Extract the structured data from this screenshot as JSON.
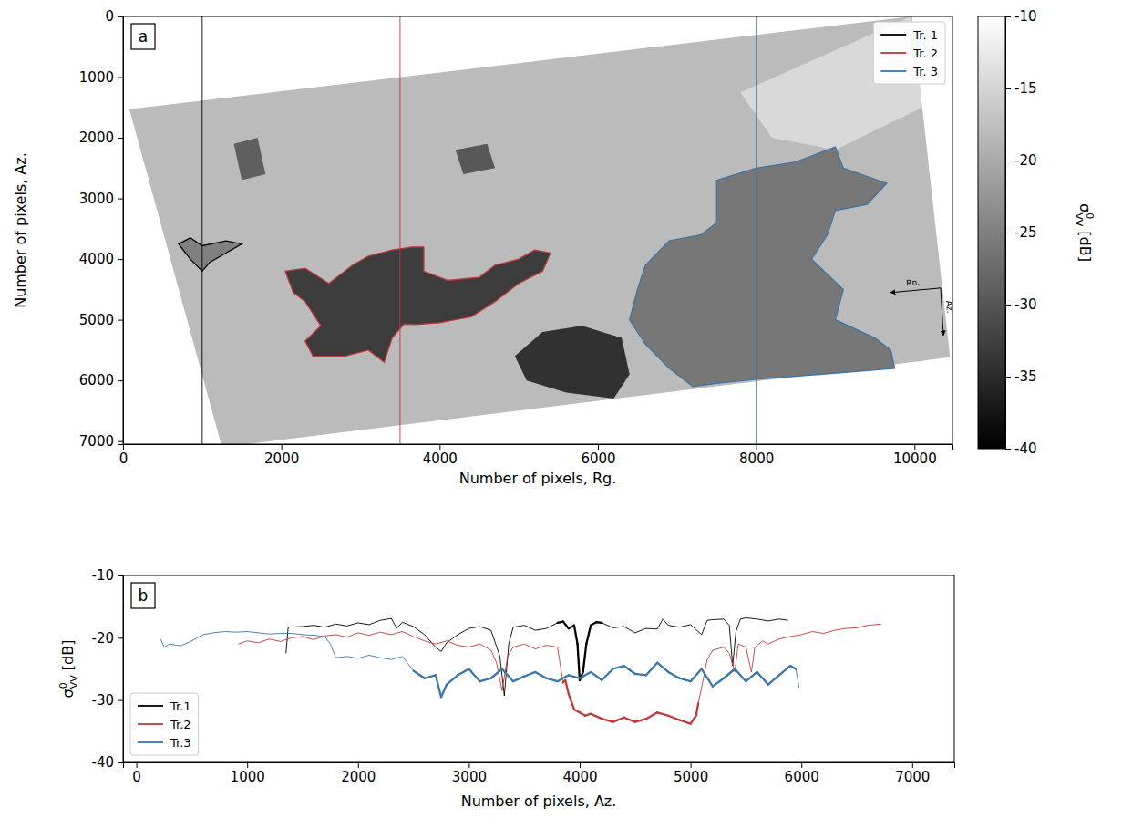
{
  "chart_data": [
    {
      "type": "image",
      "panel": "a",
      "xlabel": "Number of pixels, Rg.",
      "ylabel": "Number of pixels, Az.",
      "xlim": [
        0,
        10480
      ],
      "ylim": [
        7050,
        0
      ],
      "xticks": [
        0,
        2000,
        4000,
        6000,
        8000,
        10000
      ],
      "yticks": [
        0,
        1000,
        2000,
        3000,
        4000,
        5000,
        6000,
        7000
      ],
      "legend": "upper right",
      "annotations": [
        "Rn.",
        "Az."
      ],
      "colorbar": {
        "range": [
          -40,
          -10
        ],
        "ticks": [
          -40,
          -35,
          -30,
          -25,
          -20,
          -15,
          -10
        ],
        "label": {
          "symbol": "σ",
          "superscript": "0",
          "subscript": "VV",
          "unit": "[dB]"
        }
      },
      "image": {
        "x": [
          80,
          9970,
          10450,
          1250
        ],
        "y": [
          1530,
          0,
          5620,
          7100
        ],
        "value": -18
      },
      "regions": [
        {
          "x": [
            7800,
            9960,
            10100,
            9000,
            8200
          ],
          "y": [
            1250,
            0,
            1500,
            2200,
            2000
          ],
          "value": -14
        },
        {
          "x": [
            1400,
            1700,
            1800,
            1500
          ],
          "y": [
            2100,
            2000,
            2600,
            2700
          ],
          "value": -30
        },
        {
          "x": [
            4950,
            5300,
            5800,
            6300,
            6400,
            6200,
            5600,
            5100
          ],
          "y": [
            5600,
            5200,
            5100,
            5300,
            5900,
            6300,
            6200,
            6000
          ],
          "value": -36
        },
        {
          "x": [
            4200,
            4600,
            4700,
            4300
          ],
          "y": [
            2200,
            2100,
            2500,
            2600
          ],
          "value": -31
        }
      ],
      "series": [
        {
          "name": "Tr. 1",
          "color": "#000000",
          "x": 1000,
          "outline_value": -25,
          "outline_x": [
            700,
            850,
            1000,
            1300,
            1500,
            1300,
            1100,
            1000,
            850
          ],
          "outline_y": [
            3750,
            3650,
            3780,
            3700,
            3750,
            3900,
            4050,
            4200,
            4000
          ]
        },
        {
          "name": "Tr. 2",
          "color": "#c0393b",
          "x": 3500,
          "outline_value": -33,
          "outline_x": [
            2050,
            2300,
            2600,
            2900,
            3100,
            3400,
            3650,
            3800,
            3800,
            4100,
            4500,
            4700,
            5000,
            5200,
            5400,
            5300,
            5000,
            4700,
            4400,
            4000,
            3700,
            3550,
            3400,
            3300,
            3100,
            2800,
            2400,
            2300,
            2500,
            2300,
            2150
          ],
          "outline_y": [
            4200,
            4150,
            4400,
            4100,
            3950,
            3850,
            3800,
            3800,
            4200,
            4350,
            4300,
            4100,
            4000,
            3850,
            3900,
            4200,
            4400,
            4700,
            4950,
            5050,
            5080,
            5070,
            5300,
            5700,
            5500,
            5600,
            5600,
            5350,
            5100,
            4700,
            4550
          ]
        },
        {
          "name": "Tr. 3",
          "color": "#3a76a8",
          "x": 8000,
          "outline_value": -26,
          "outline_x": [
            6400,
            6500,
            6600,
            6900,
            7300,
            7500,
            7500,
            8000,
            8500,
            9000,
            9100,
            9650,
            9400,
            9000,
            8900,
            8700,
            9100,
            9000,
            9500,
            9700,
            9750,
            9300,
            8800,
            8000,
            7500,
            7200,
            6900,
            6600
          ],
          "outline_y": [
            5000,
            4500,
            4100,
            3700,
            3600,
            3400,
            2700,
            2500,
            2400,
            2150,
            2500,
            2750,
            3100,
            3200,
            3600,
            4000,
            4500,
            5000,
            5300,
            5500,
            5800,
            5850,
            5900,
            5980,
            6050,
            6100,
            5800,
            5400
          ]
        }
      ]
    },
    {
      "type": "line",
      "panel": "b",
      "xlabel": "Number of pixels, Az.",
      "ylabel": {
        "symbol": "σ",
        "superscript": "0",
        "subscript": "VV",
        "unit": "[dB]"
      },
      "xlim": [
        -120,
        7380
      ],
      "ylim": [
        -40,
        -10
      ],
      "xticks": [
        0,
        1000,
        2000,
        3000,
        4000,
        5000,
        6000,
        7000
      ],
      "yticks": [
        -40,
        -30,
        -20,
        -10
      ],
      "legend": "lower left",
      "series": [
        {
          "name": "Tr.1",
          "color": "#000000",
          "inside_x": [
            3800,
            4200
          ],
          "x": [
            1350,
            1370,
            1500,
            1600,
            1700,
            1800,
            1900,
            2000,
            2100,
            2200,
            2300,
            2350,
            2400,
            2500,
            2600,
            2700,
            2750,
            2800,
            2900,
            3000,
            3100,
            3200,
            3280,
            3320,
            3360,
            3400,
            3500,
            3600,
            3700,
            3800,
            3850,
            3900,
            3950,
            3980,
            4000,
            4030,
            4060,
            4100,
            4150,
            4200,
            4300,
            4400,
            4500,
            4600,
            4700,
            4750,
            4800,
            4900,
            5000,
            5100,
            5150,
            5200,
            5300,
            5350,
            5380,
            5410,
            5450,
            5500,
            5600,
            5700,
            5800,
            5880
          ],
          "values": [
            -22.5,
            -18.3,
            -18.2,
            -18.0,
            -18.3,
            -17.8,
            -18.1,
            -17.6,
            -17.9,
            -17.2,
            -16.9,
            -18.5,
            -17.5,
            -18.2,
            -19.5,
            -21.5,
            -22.2,
            -20.8,
            -19.5,
            -18.5,
            -18.2,
            -18.8,
            -23.0,
            -29.3,
            -21.0,
            -18.3,
            -18.0,
            -18.8,
            -18.5,
            -17.6,
            -17.4,
            -18.5,
            -18.0,
            -21.0,
            -26.8,
            -25.5,
            -21.0,
            -18.0,
            -17.5,
            -17.6,
            -18.4,
            -18.2,
            -19.2,
            -18.5,
            -18.6,
            -17.0,
            -18.0,
            -18.3,
            -17.9,
            -19.5,
            -17.2,
            -17.1,
            -17.0,
            -18.0,
            -24.5,
            -19.0,
            -17.0,
            -16.8,
            -17.0,
            -17.3,
            -17.0,
            -17.2
          ]
        },
        {
          "name": "Tr.2",
          "color": "#c0393b",
          "inside_x": [
            3850,
            5070
          ],
          "x": [
            920,
            1000,
            1100,
            1200,
            1300,
            1400,
            1500,
            1600,
            1700,
            1800,
            1900,
            2000,
            2100,
            2200,
            2300,
            2400,
            2500,
            2600,
            2700,
            2800,
            2900,
            3000,
            3100,
            3200,
            3250,
            3300,
            3350,
            3400,
            3500,
            3600,
            3700,
            3800,
            3850,
            3870,
            3900,
            3950,
            4000,
            4050,
            4100,
            4200,
            4300,
            4400,
            4500,
            4600,
            4700,
            4800,
            4900,
            5000,
            5050,
            5070,
            5100,
            5150,
            5200,
            5300,
            5350,
            5400,
            5430,
            5500,
            5550,
            5580,
            5650,
            5700,
            5800,
            5900,
            6000,
            6100,
            6200,
            6300,
            6400,
            6500,
            6600,
            6720
          ],
          "values": [
            -21.0,
            -20.5,
            -20.8,
            -20.2,
            -20.6,
            -20.0,
            -19.8,
            -20.3,
            -19.7,
            -19.5,
            -19.9,
            -19.2,
            -19.6,
            -19.1,
            -19.5,
            -19.0,
            -19.8,
            -20.5,
            -21.0,
            -20.5,
            -21.2,
            -21.5,
            -21.0,
            -22.0,
            -24.0,
            -28.5,
            -23.0,
            -21.5,
            -21.0,
            -21.8,
            -21.2,
            -21.5,
            -27.2,
            -26.8,
            -29.0,
            -31.5,
            -32.0,
            -32.5,
            -32.2,
            -33.0,
            -33.5,
            -32.8,
            -33.5,
            -33.0,
            -32.0,
            -32.5,
            -33.2,
            -33.8,
            -32.5,
            -30.5,
            -28.0,
            -23.5,
            -22.0,
            -21.5,
            -22.5,
            -25.5,
            -21.0,
            -21.5,
            -25.5,
            -21.5,
            -20.5,
            -21.0,
            -20.2,
            -19.8,
            -19.5,
            -19.0,
            -19.3,
            -18.8,
            -18.5,
            -18.4,
            -18.0,
            -17.8
          ]
        },
        {
          "name": "Tr.3",
          "color": "#3a76a8",
          "inside_x": [
            2500,
            5950
          ],
          "x": [
            220,
            250,
            300,
            400,
            500,
            600,
            700,
            800,
            900,
            1000,
            1100,
            1200,
            1300,
            1400,
            1500,
            1600,
            1700,
            1750,
            1800,
            1900,
            2000,
            2100,
            2200,
            2300,
            2400,
            2500,
            2600,
            2700,
            2750,
            2800,
            2900,
            3000,
            3100,
            3200,
            3300,
            3400,
            3500,
            3600,
            3700,
            3800,
            3900,
            4000,
            4100,
            4200,
            4300,
            4400,
            4500,
            4600,
            4700,
            4800,
            4900,
            5000,
            5100,
            5200,
            5300,
            5400,
            5500,
            5600,
            5700,
            5800,
            5900,
            5950,
            5980
          ],
          "values": [
            -20.2,
            -21.5,
            -21.0,
            -21.3,
            -20.5,
            -19.5,
            -19.2,
            -19.0,
            -19.1,
            -19.0,
            -19.2,
            -19.4,
            -19.3,
            -19.3,
            -19.5,
            -19.6,
            -19.8,
            -21.0,
            -23.2,
            -23.0,
            -23.3,
            -22.8,
            -23.2,
            -23.5,
            -23.0,
            -25.3,
            -26.5,
            -26.0,
            -29.5,
            -27.5,
            -26.0,
            -25.0,
            -27.0,
            -26.5,
            -25.0,
            -27.0,
            -26.2,
            -25.5,
            -26.5,
            -27.0,
            -26.0,
            -26.5,
            -25.5,
            -26.8,
            -25.0,
            -24.5,
            -25.8,
            -26.0,
            -24.0,
            -25.5,
            -26.5,
            -27.0,
            -25.0,
            -27.8,
            -26.5,
            -25.0,
            -27.0,
            -25.5,
            -27.5,
            -26.0,
            -24.5,
            -25.0,
            -28.0
          ]
        }
      ]
    }
  ]
}
